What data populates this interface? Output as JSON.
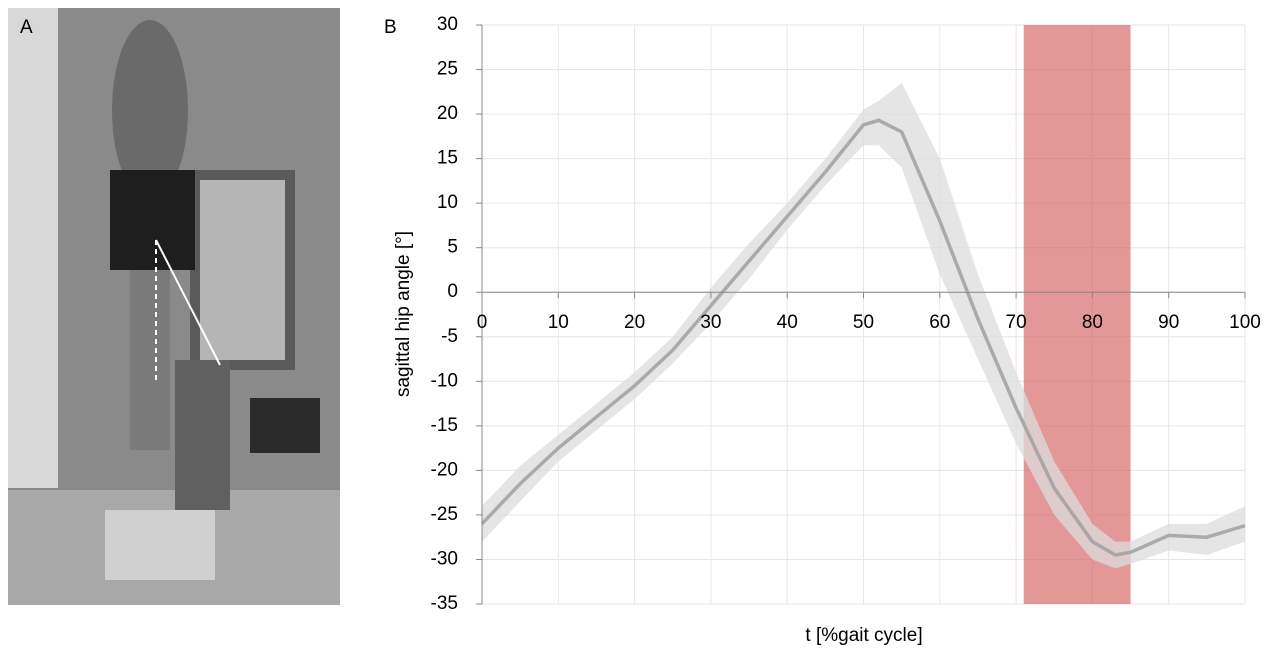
{
  "panel_labels": [
    "A",
    "B"
  ],
  "chart_data": {
    "type": "band-line",
    "xlabel": "t [%gait cycle]",
    "ylabel": "sagittal hip angle [°]",
    "x": [
      0,
      5,
      10,
      15,
      20,
      25,
      30,
      35,
      40,
      45,
      50,
      52,
      55,
      60,
      65,
      70,
      75,
      80,
      83,
      85,
      90,
      95,
      100
    ],
    "mean": [
      -26,
      -21.5,
      -17.5,
      -14,
      -10.5,
      -6.5,
      -1.5,
      3.5,
      8.5,
      13.5,
      18.8,
      19.3,
      18,
      8,
      -3,
      -13,
      -22,
      -28,
      -29.5,
      -29.2,
      -27.3,
      -27.5,
      -26.2
    ],
    "upper": [
      -24,
      -19.5,
      -16,
      -12.5,
      -9,
      -5,
      0.5,
      5.5,
      10,
      15,
      20.5,
      21.5,
      23.5,
      15,
      2,
      -9,
      -19,
      -26,
      -28,
      -28,
      -26,
      -26,
      -24
    ],
    "lower": [
      -28,
      -23.5,
      -19,
      -15.5,
      -12,
      -8,
      -3.5,
      1.5,
      7,
      12,
      16.5,
      16.5,
      14,
      2,
      -7.5,
      -17,
      -25,
      -30,
      -31,
      -30.5,
      -29,
      -29.5,
      -28
    ],
    "line_color": "#a0a0a0",
    "band_color": "#dcdcdc",
    "highlight": {
      "xlim": [
        71,
        85
      ],
      "color": "#d65f5f"
    },
    "xlim": [
      0,
      100
    ],
    "xticks": [
      0,
      10,
      20,
      30,
      40,
      50,
      60,
      70,
      80,
      90,
      100
    ],
    "ylim": [
      -35,
      30
    ],
    "yticks": [
      -35,
      -30,
      -25,
      -20,
      -15,
      -10,
      -5,
      0,
      5,
      10,
      15,
      20,
      25,
      30
    ],
    "grid": true
  }
}
